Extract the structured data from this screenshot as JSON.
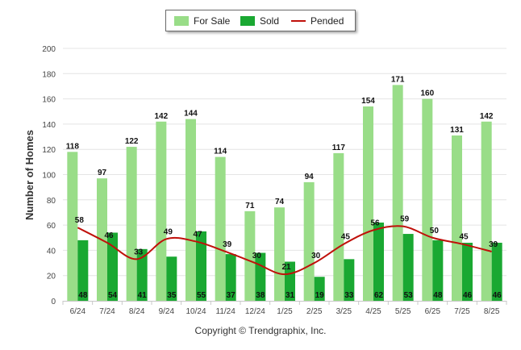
{
  "chart_data": {
    "type": "bar",
    "categories": [
      "6/24",
      "7/24",
      "8/24",
      "9/24",
      "10/24",
      "11/24",
      "12/24",
      "1/25",
      "2/25",
      "3/25",
      "4/25",
      "5/25",
      "6/25",
      "7/25",
      "8/25"
    ],
    "series": [
      {
        "name": "For Sale",
        "type": "bar",
        "color": "#99dd88",
        "values": [
          118,
          97,
          122,
          142,
          144,
          114,
          71,
          74,
          94,
          117,
          154,
          171,
          160,
          131,
          142
        ]
      },
      {
        "name": "Sold",
        "type": "bar",
        "color": "#1aa832",
        "values": [
          48,
          54,
          41,
          35,
          55,
          37,
          38,
          31,
          19,
          33,
          62,
          53,
          48,
          46,
          46
        ]
      },
      {
        "name": "Pended",
        "type": "line",
        "color": "#c0100a",
        "values": [
          58,
          46,
          33,
          49,
          47,
          39,
          30,
          21,
          30,
          45,
          56,
          59,
          50,
          45,
          39
        ]
      }
    ],
    "title": "",
    "xlabel": "",
    "ylabel": "Number of Homes",
    "ylim": [
      0,
      200
    ],
    "yticks": [
      0,
      20,
      40,
      60,
      80,
      100,
      120,
      140,
      160,
      180,
      200
    ],
    "grid": true,
    "legend_position": "top-center"
  },
  "legend": {
    "for_sale": "For Sale",
    "sold": "Sold",
    "pended": "Pended"
  },
  "footer": {
    "copyright": "Copyright © Trendgraphix, Inc."
  }
}
